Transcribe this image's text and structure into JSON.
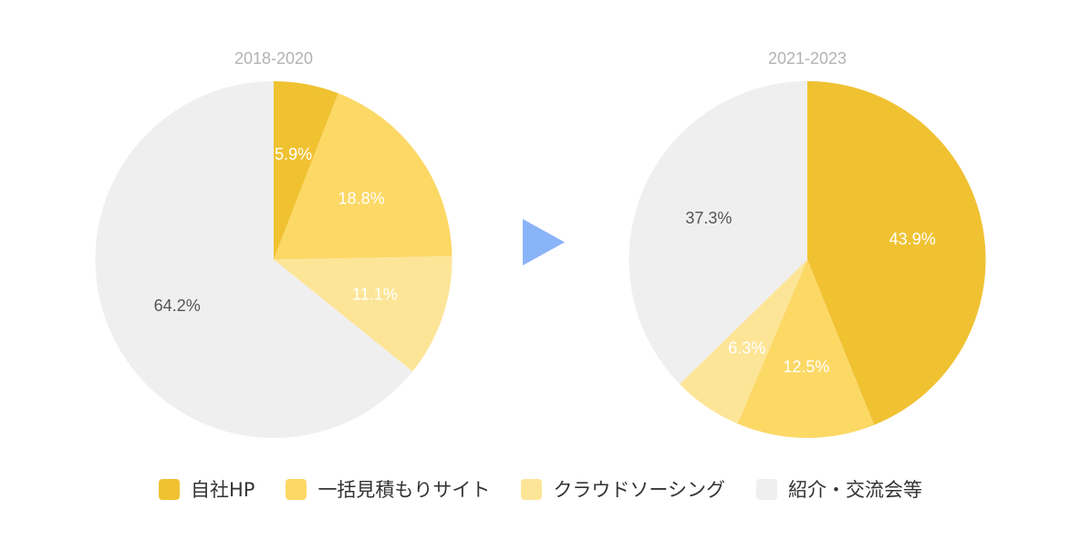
{
  "chart_data": [
    {
      "type": "pie",
      "title": "2018-2020",
      "labels": [
        "自社HP",
        "一括見積もりサイト",
        "クラウドソーシング",
        "紹介・交流会等"
      ],
      "values": [
        5.9,
        18.8,
        11.1,
        64.2
      ],
      "value_labels": [
        "5.9%",
        "18.8%",
        "11.1%",
        "64.2%"
      ]
    },
    {
      "type": "pie",
      "title": "2021-2023",
      "labels": [
        "自社HP",
        "一括見積もりサイト",
        "クラウドソーシング",
        "紹介・交流会等"
      ],
      "values": [
        43.9,
        12.5,
        6.3,
        37.3
      ],
      "value_labels": [
        "43.9%",
        "12.5%",
        "6.3%",
        "37.3%"
      ]
    }
  ],
  "legend": {
    "position": "bottom",
    "items": [
      {
        "label": "自社HP",
        "color": "#f0c232"
      },
      {
        "label": "一括見積もりサイト",
        "color": "#fcd865"
      },
      {
        "label": "クラウドソーシング",
        "color": "#fde598"
      },
      {
        "label": "紹介・交流会等",
        "color": "#efefef"
      }
    ]
  },
  "label_colors": [
    "#ffffff",
    "#ffffff",
    "#ffffff",
    "#555555"
  ],
  "arrow": {
    "icon": "arrow-right-icon",
    "color": "#8ab4f8"
  }
}
